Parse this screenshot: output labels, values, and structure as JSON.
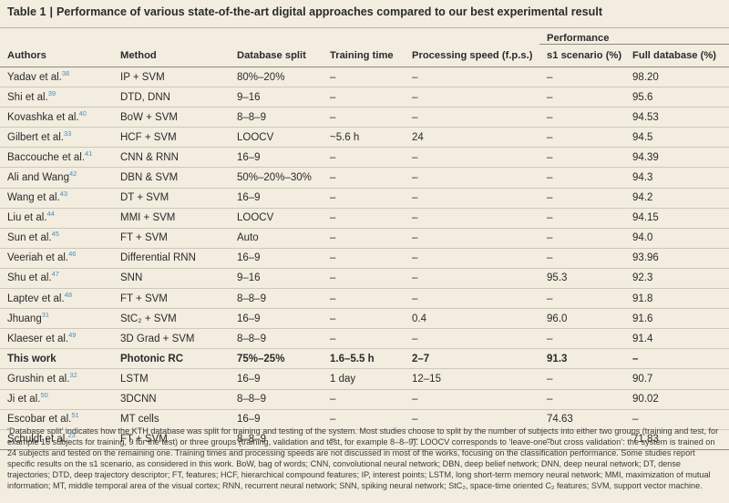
{
  "table": {
    "label": "Table 1",
    "separator": "|",
    "caption": "Performance of various state-of-the-art digital approaches compared to our best experimental result"
  },
  "header": {
    "performance": "Performance",
    "columns": [
      "Authors",
      "Method",
      "Database split",
      "Training time",
      "Processing speed (f.p.s.)",
      "s1 scenario (%)",
      "Full database (%)"
    ]
  },
  "rows": [
    {
      "author": "Yadav et al.",
      "ref": "38",
      "method": "IP + SVM",
      "split": "80%–20%",
      "training": "–",
      "speed": "–",
      "s1": "–",
      "full": "98.20"
    },
    {
      "author": "Shi et al.",
      "ref": "39",
      "method": "DTD, DNN",
      "split": "9–16",
      "training": "–",
      "speed": "–",
      "s1": "–",
      "full": "95.6"
    },
    {
      "author": "Kovashka et al.",
      "ref": "40",
      "method": "BoW + SVM",
      "split": "8–8–9",
      "training": "–",
      "speed": "–",
      "s1": "–",
      "full": "94.53"
    },
    {
      "author": "Gilbert et al.",
      "ref": "33",
      "method": "HCF + SVM",
      "split": "LOOCV",
      "training": "~5.6 h",
      "speed": "24",
      "s1": "–",
      "full": "94.5"
    },
    {
      "author": "Baccouche et al.",
      "ref": "41",
      "method": "CNN & RNN",
      "split": "16–9",
      "training": "–",
      "speed": "–",
      "s1": "–",
      "full": "94.39"
    },
    {
      "author": "Ali and Wang",
      "ref": "42",
      "method": "DBN & SVM",
      "split": "50%–20%–30%",
      "training": "–",
      "speed": "–",
      "s1": "–",
      "full": "94.3"
    },
    {
      "author": "Wang et al.",
      "ref": "43",
      "method": "DT + SVM",
      "split": "16–9",
      "training": "–",
      "speed": "–",
      "s1": "–",
      "full": "94.2"
    },
    {
      "author": "Liu et al.",
      "ref": "44",
      "method": "MMI + SVM",
      "split": "LOOCV",
      "training": "–",
      "speed": "–",
      "s1": "–",
      "full": "94.15"
    },
    {
      "author": "Sun et al.",
      "ref": "45",
      "method": "FT + SVM",
      "split": "Auto",
      "training": "–",
      "speed": "–",
      "s1": "–",
      "full": "94.0"
    },
    {
      "author": "Veeriah et al.",
      "ref": "46",
      "method": "Differential RNN",
      "split": "16–9",
      "training": "–",
      "speed": "–",
      "s1": "–",
      "full": "93.96"
    },
    {
      "author": "Shu et al.",
      "ref": "47",
      "method": "SNN",
      "split": "9–16",
      "training": "–",
      "speed": "–",
      "s1": "95.3",
      "full": "92.3"
    },
    {
      "author": "Laptev et al.",
      "ref": "48",
      "method": "FT + SVM",
      "split": "8–8–9",
      "training": "–",
      "speed": "–",
      "s1": "–",
      "full": "91.8"
    },
    {
      "author": "Jhuang",
      "ref": "31",
      "method": "StC₂ + SVM",
      "split": "16–9",
      "training": "–",
      "speed": "0.4",
      "s1": "96.0",
      "full": "91.6"
    },
    {
      "author": "Klaeser et al.",
      "ref": "49",
      "method": "3D Grad + SVM",
      "split": "8–8–9",
      "training": "–",
      "speed": "–",
      "s1": "–",
      "full": "91.4"
    },
    {
      "author": "This work",
      "ref": "",
      "method": "Photonic RC",
      "split": "75%–25%",
      "training": "1.6–5.5 h",
      "speed": "2–7",
      "s1": "91.3",
      "full": "–"
    },
    {
      "author": "Grushin et al.",
      "ref": "32",
      "method": "LSTM",
      "split": "16–9",
      "training": "1 day",
      "speed": "12–15",
      "s1": "–",
      "full": "90.7"
    },
    {
      "author": "Ji et al.",
      "ref": "50",
      "method": "3DCNN",
      "split": "8–8–9",
      "training": "–",
      "speed": "–",
      "s1": "–",
      "full": "90.02"
    },
    {
      "author": "Escobar et al.",
      "ref": "51",
      "method": "MT cells",
      "split": "16–9",
      "training": "–",
      "speed": "–",
      "s1": "74.63",
      "full": "–"
    },
    {
      "author": "Schuldt et al.",
      "ref": "23",
      "method": "FT + SVM",
      "split": "8–8–9",
      "training": "–",
      "speed": "–",
      "s1": "–",
      "full": "71.83"
    }
  ],
  "footnote": "‘Database split’ indicates how the KTH database was split for training and testing of the system. Most studies choose to split by the number of subjects into either two groups (training and test, for example 16 subjects for training, 9 for the test) or three groups (training, validation and test, for example 8–8–9). LOOCV corresponds to ‘leave-one-out cross validation’: the system is trained on 24 subjects and tested on the remaining one. Training times and processing speeds are not discussed in most of the works, focusing on the classification performance. Some studies report specific results on the s1 scenario, as considered in this work. BoW, bag of words; CNN, convolutional neural network; DBN, deep belief network; DNN, deep neural network; DT, dense trajectories; DTD, deep trajectory descriptor; FT, features; HCF, hierarchical compound features; IP, interest points; LSTM, long short-term memory neural network; MMI, maximization of mutual information; MT, middle temporal area of the visual cortex; RNN, recurrent neural network; SNN, spiking neural network; StC₂, space-time oriented C₂ features; SVM, support vector machine."
}
